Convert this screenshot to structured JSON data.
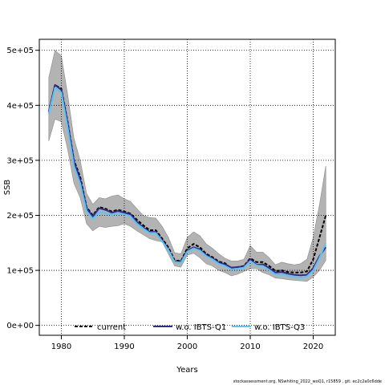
{
  "chart_data": {
    "type": "line",
    "xlabel": "Years",
    "ylabel": "SSB",
    "xlim": [
      1976.5,
      2023.5
    ],
    "ylim": [
      -18000,
      520000
    ],
    "x_ticks": [
      1980,
      1990,
      2000,
      2010,
      2020
    ],
    "y_ticks": [
      {
        "value": 0,
        "label": "0e+00"
      },
      {
        "value": 100000,
        "label": "1e+05"
      },
      {
        "value": 200000,
        "label": "2e+05"
      },
      {
        "value": 300000,
        "label": "3e+05"
      },
      {
        "value": 400000,
        "label": "4e+05"
      },
      {
        "value": 500000,
        "label": "5e+05"
      }
    ],
    "grid": true,
    "legend_position": "bottom",
    "x": [
      1978,
      1979,
      1980,
      1981,
      1982,
      1983,
      1984,
      1985,
      1986,
      1987,
      1988,
      1989,
      1990,
      1991,
      1992,
      1993,
      1994,
      1995,
      1996,
      1997,
      1998,
      1999,
      2000,
      2001,
      2002,
      2003,
      2004,
      2005,
      2006,
      2007,
      2008,
      2009,
      2010,
      2011,
      2012,
      2013,
      2014,
      2015,
      2016,
      2017,
      2018,
      2019,
      2020,
      2021,
      2022
    ],
    "band": {
      "upper": [
        450000,
        500000,
        490000,
        420000,
        340000,
        300000,
        240000,
        220000,
        232000,
        230000,
        235000,
        237000,
        230000,
        225000,
        212000,
        200000,
        196000,
        195000,
        180000,
        160000,
        132000,
        130000,
        160000,
        170000,
        163000,
        148000,
        140000,
        130000,
        122000,
        117000,
        117000,
        120000,
        145000,
        133000,
        133000,
        123000,
        110000,
        115000,
        112000,
        110000,
        112000,
        120000,
        160000,
        220000,
        290000
      ],
      "lower": [
        335000,
        375000,
        370000,
        320000,
        258000,
        232000,
        185000,
        172000,
        180000,
        178000,
        180000,
        181000,
        185000,
        180000,
        172000,
        165000,
        158000,
        154000,
        152000,
        130000,
        108000,
        106000,
        128000,
        131000,
        123000,
        112000,
        108000,
        100000,
        96000,
        90000,
        93000,
        98000,
        103000,
        103000,
        96000,
        92000,
        86000,
        85000,
        83000,
        82000,
        81000,
        80000,
        88000,
        100000,
        118000
      ]
    },
    "series": [
      {
        "name": "current",
        "color": "#000000",
        "dashed": true,
        "values": [
          388000,
          437000,
          430000,
          370000,
          300000,
          270000,
          215000,
          200000,
          215000,
          212000,
          207000,
          210000,
          207000,
          203000,
          192000,
          182000,
          173000,
          173000,
          158000,
          142000,
          118000,
          117000,
          140000,
          148000,
          142000,
          130000,
          124000,
          116000,
          113000,
          103000,
          106000,
          108000,
          122000,
          115000,
          115000,
          108000,
          99000,
          100000,
          97000,
          96000,
          96000,
          98000,
          120000,
          160000,
          200000
        ]
      },
      {
        "name": "w.o. IBTS-Q1",
        "color": "#2b2d8f",
        "dashed": false,
        "values": [
          388000,
          437000,
          428000,
          368000,
          298000,
          265000,
          213000,
          198000,
          213000,
          210000,
          205000,
          208000,
          205000,
          202000,
          188000,
          178000,
          170000,
          170000,
          155000,
          138000,
          116000,
          116000,
          136000,
          142000,
          138000,
          128000,
          122000,
          114000,
          111000,
          105000,
          106000,
          107000,
          120000,
          110000,
          111000,
          104000,
          96000,
          97000,
          94000,
          92000,
          91000,
          92000,
          104000,
          126000,
          142000
        ]
      },
      {
        "name": "w.o. IBTS-Q3",
        "color": "#5bc4f0",
        "dashed": false,
        "values": [
          385000,
          432000,
          423000,
          360000,
          290000,
          258000,
          208000,
          194000,
          206000,
          204000,
          201000,
          204000,
          202000,
          198000,
          185000,
          176000,
          168000,
          168000,
          153000,
          137000,
          115000,
          114000,
          134000,
          140000,
          136000,
          126000,
          120000,
          112000,
          108000,
          102000,
          103000,
          105000,
          117000,
          109000,
          108000,
          101000,
          93000,
          93000,
          90000,
          88000,
          87000,
          89000,
          100000,
          123000,
          150000
        ]
      }
    ]
  },
  "footnote": "stockassessment.org, NSwhiting_2022_woQ1, r15859 , git: ec2c2a0c6dde"
}
